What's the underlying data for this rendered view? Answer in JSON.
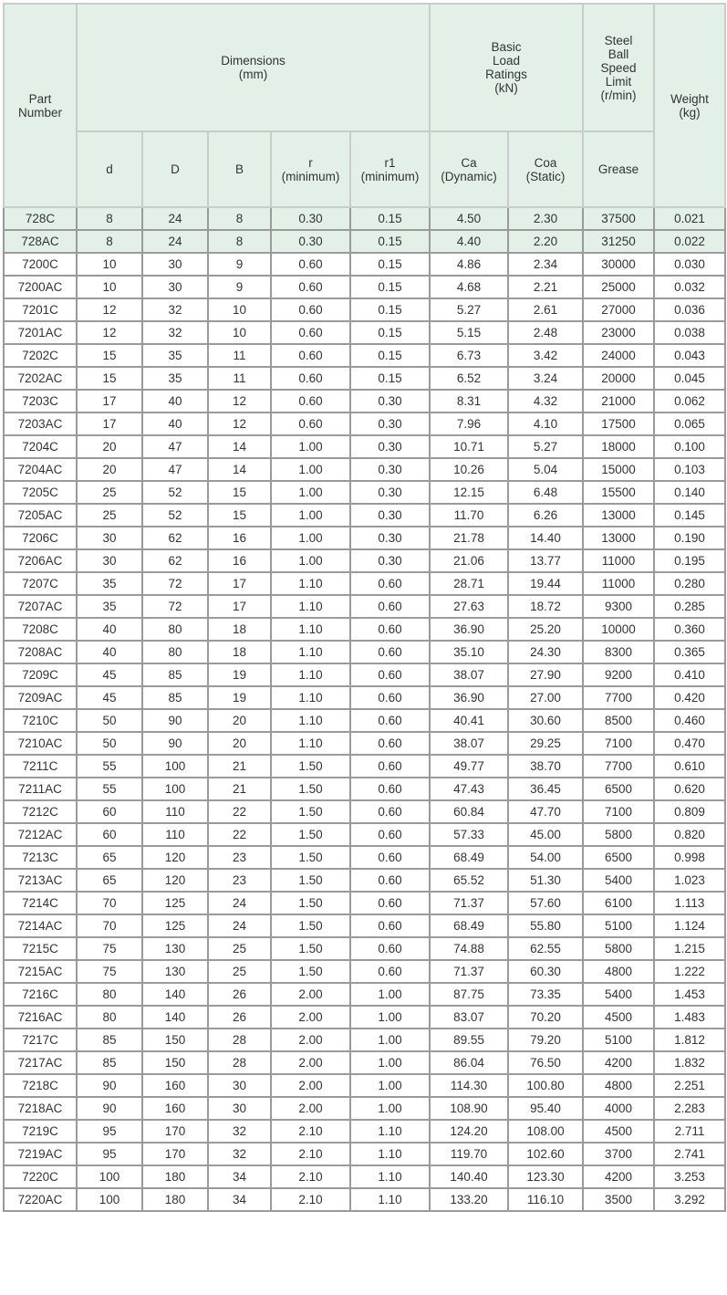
{
  "header": {
    "part_number": "Part\nNumber",
    "dimensions": "Dimensions\n(mm)",
    "load_ratings": "Basic\nLoad\nRatings\n(kN)",
    "speed_limit": "Steel\nBall\nSpeed\nLimit\n(r/min)",
    "weight": "Weight\n(kg)",
    "d": "d",
    "D": "D",
    "B": "B",
    "r": "r\n(minimum)",
    "r1": "r1\n(minimum)",
    "ca": "Ca\n(Dynamic)",
    "coa": "Coa\n(Static)",
    "grease": "Grease"
  },
  "colors": {
    "header_bg": "#e3f0e7",
    "highlight_row_bg": "#e3f0e7"
  },
  "highlighted_rows": [
    0,
    1
  ],
  "rows": [
    [
      "728C",
      "8",
      "24",
      "8",
      "0.30",
      "0.15",
      "4.50",
      "2.30",
      "37500",
      "0.021"
    ],
    [
      "728AC",
      "8",
      "24",
      "8",
      "0.30",
      "0.15",
      "4.40",
      "2.20",
      "31250",
      "0.022"
    ],
    [
      "7200C",
      "10",
      "30",
      "9",
      "0.60",
      "0.15",
      "4.86",
      "2.34",
      "30000",
      "0.030"
    ],
    [
      "7200AC",
      "10",
      "30",
      "9",
      "0.60",
      "0.15",
      "4.68",
      "2.21",
      "25000",
      "0.032"
    ],
    [
      "7201C",
      "12",
      "32",
      "10",
      "0.60",
      "0.15",
      "5.27",
      "2.61",
      "27000",
      "0.036"
    ],
    [
      "7201AC",
      "12",
      "32",
      "10",
      "0.60",
      "0.15",
      "5.15",
      "2.48",
      "23000",
      "0.038"
    ],
    [
      "7202C",
      "15",
      "35",
      "11",
      "0.60",
      "0.15",
      "6.73",
      "3.42",
      "24000",
      "0.043"
    ],
    [
      "7202AC",
      "15",
      "35",
      "11",
      "0.60",
      "0.15",
      "6.52",
      "3.24",
      "20000",
      "0.045"
    ],
    [
      "7203C",
      "17",
      "40",
      "12",
      "0.60",
      "0.30",
      "8.31",
      "4.32",
      "21000",
      "0.062"
    ],
    [
      "7203AC",
      "17",
      "40",
      "12",
      "0.60",
      "0.30",
      "7.96",
      "4.10",
      "17500",
      "0.065"
    ],
    [
      "7204C",
      "20",
      "47",
      "14",
      "1.00",
      "0.30",
      "10.71",
      "5.27",
      "18000",
      "0.100"
    ],
    [
      "7204AC",
      "20",
      "47",
      "14",
      "1.00",
      "0.30",
      "10.26",
      "5.04",
      "15000",
      "0.103"
    ],
    [
      "7205C",
      "25",
      "52",
      "15",
      "1.00",
      "0.30",
      "12.15",
      "6.48",
      "15500",
      "0.140"
    ],
    [
      "7205AC",
      "25",
      "52",
      "15",
      "1.00",
      "0.30",
      "11.70",
      "6.26",
      "13000",
      "0.145"
    ],
    [
      "7206C",
      "30",
      "62",
      "16",
      "1.00",
      "0.30",
      "21.78",
      "14.40",
      "13000",
      "0.190"
    ],
    [
      "7206AC",
      "30",
      "62",
      "16",
      "1.00",
      "0.30",
      "21.06",
      "13.77",
      "11000",
      "0.195"
    ],
    [
      "7207C",
      "35",
      "72",
      "17",
      "1.10",
      "0.60",
      "28.71",
      "19.44",
      "11000",
      "0.280"
    ],
    [
      "7207AC",
      "35",
      "72",
      "17",
      "1.10",
      "0.60",
      "27.63",
      "18.72",
      "9300",
      "0.285"
    ],
    [
      "7208C",
      "40",
      "80",
      "18",
      "1.10",
      "0.60",
      "36.90",
      "25.20",
      "10000",
      "0.360"
    ],
    [
      "7208AC",
      "40",
      "80",
      "18",
      "1.10",
      "0.60",
      "35.10",
      "24.30",
      "8300",
      "0.365"
    ],
    [
      "7209C",
      "45",
      "85",
      "19",
      "1.10",
      "0.60",
      "38.07",
      "27.90",
      "9200",
      "0.410"
    ],
    [
      "7209AC",
      "45",
      "85",
      "19",
      "1.10",
      "0.60",
      "36.90",
      "27.00",
      "7700",
      "0.420"
    ],
    [
      "7210C",
      "50",
      "90",
      "20",
      "1.10",
      "0.60",
      "40.41",
      "30.60",
      "8500",
      "0.460"
    ],
    [
      "7210AC",
      "50",
      "90",
      "20",
      "1.10",
      "0.60",
      "38.07",
      "29.25",
      "7100",
      "0.470"
    ],
    [
      "7211C",
      "55",
      "100",
      "21",
      "1.50",
      "0.60",
      "49.77",
      "38.70",
      "7700",
      "0.610"
    ],
    [
      "7211AC",
      "55",
      "100",
      "21",
      "1.50",
      "0.60",
      "47.43",
      "36.45",
      "6500",
      "0.620"
    ],
    [
      "7212C",
      "60",
      "110",
      "22",
      "1.50",
      "0.60",
      "60.84",
      "47.70",
      "7100",
      "0.809"
    ],
    [
      "7212AC",
      "60",
      "110",
      "22",
      "1.50",
      "0.60",
      "57.33",
      "45.00",
      "5800",
      "0.820"
    ],
    [
      "7213C",
      "65",
      "120",
      "23",
      "1.50",
      "0.60",
      "68.49",
      "54.00",
      "6500",
      "0.998"
    ],
    [
      "7213AC",
      "65",
      "120",
      "23",
      "1.50",
      "0.60",
      "65.52",
      "51.30",
      "5400",
      "1.023"
    ],
    [
      "7214C",
      "70",
      "125",
      "24",
      "1.50",
      "0.60",
      "71.37",
      "57.60",
      "6100",
      "1.113"
    ],
    [
      "7214AC",
      "70",
      "125",
      "24",
      "1.50",
      "0.60",
      "68.49",
      "55.80",
      "5100",
      "1.124"
    ],
    [
      "7215C",
      "75",
      "130",
      "25",
      "1.50",
      "0.60",
      "74.88",
      "62.55",
      "5800",
      "1.215"
    ],
    [
      "7215AC",
      "75",
      "130",
      "25",
      "1.50",
      "0.60",
      "71.37",
      "60.30",
      "4800",
      "1.222"
    ],
    [
      "7216C",
      "80",
      "140",
      "26",
      "2.00",
      "1.00",
      "87.75",
      "73.35",
      "5400",
      "1.453"
    ],
    [
      "7216AC",
      "80",
      "140",
      "26",
      "2.00",
      "1.00",
      "83.07",
      "70.20",
      "4500",
      "1.483"
    ],
    [
      "7217C",
      "85",
      "150",
      "28",
      "2.00",
      "1.00",
      "89.55",
      "79.20",
      "5100",
      "1.812"
    ],
    [
      "7217AC",
      "85",
      "150",
      "28",
      "2.00",
      "1.00",
      "86.04",
      "76.50",
      "4200",
      "1.832"
    ],
    [
      "7218C",
      "90",
      "160",
      "30",
      "2.00",
      "1.00",
      "114.30",
      "100.80",
      "4800",
      "2.251"
    ],
    [
      "7218AC",
      "90",
      "160",
      "30",
      "2.00",
      "1.00",
      "108.90",
      "95.40",
      "4000",
      "2.283"
    ],
    [
      "7219C",
      "95",
      "170",
      "32",
      "2.10",
      "1.10",
      "124.20",
      "108.00",
      "4500",
      "2.711"
    ],
    [
      "7219AC",
      "95",
      "170",
      "32",
      "2.10",
      "1.10",
      "119.70",
      "102.60",
      "3700",
      "2.741"
    ],
    [
      "7220C",
      "100",
      "180",
      "34",
      "2.10",
      "1.10",
      "140.40",
      "123.30",
      "4200",
      "3.253"
    ],
    [
      "7220AC",
      "100",
      "180",
      "34",
      "2.10",
      "1.10",
      "133.20",
      "116.10",
      "3500",
      "3.292"
    ]
  ]
}
